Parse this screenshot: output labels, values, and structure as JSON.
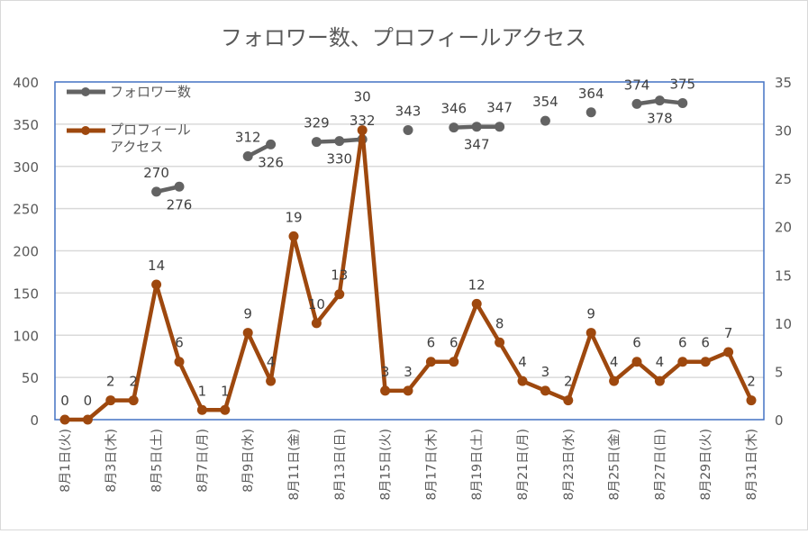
{
  "chart_data": {
    "type": "line",
    "title": "フォロワー数、プロフィールアクセス",
    "x": [
      "8月1日(火)",
      "8月2日",
      "8月3日(木)",
      "8月4日",
      "8月5日(土)",
      "8月6日",
      "8月7日(月)",
      "8月8日",
      "8月9日(水)",
      "8月10日",
      "8月11日(金)",
      "8月12日",
      "8月13日(日)",
      "8月14日",
      "8月15日(火)",
      "8月16日",
      "8月17日(木)",
      "8月18日",
      "8月19日(土)",
      "8月20日",
      "8月21日(月)",
      "8月22日",
      "8月23日(水)",
      "8月24日",
      "8月25日(金)",
      "8月26日",
      "8月27日(日)",
      "8月28日",
      "8月29日(火)",
      "8月30日",
      "8月31日(木)"
    ],
    "x_tick_labels": [
      "8月1日(火)",
      "8月3日(木)",
      "8月5日(土)",
      "8月7日(月)",
      "8月9日(水)",
      "8月11日(金)",
      "8月13日(日)",
      "8月15日(火)",
      "8月17日(木)",
      "8月19日(土)",
      "8月21日(月)",
      "8月23日(水)",
      "8月25日(金)",
      "8月27日(日)",
      "8月29日(火)",
      "8月31日(木)"
    ],
    "y_left": {
      "range": [
        0,
        400
      ],
      "ticks": [
        0,
        50,
        100,
        150,
        200,
        250,
        300,
        350,
        400
      ]
    },
    "y_right": {
      "range": [
        0,
        35
      ],
      "ticks": [
        0,
        5,
        10,
        15,
        20,
        25,
        30,
        35
      ]
    },
    "grid": true,
    "legend": "top-left",
    "series": [
      {
        "name": "フォロワー数",
        "axis": "left",
        "color": "#636363",
        "values": [
          null,
          null,
          null,
          null,
          270,
          276,
          null,
          null,
          312,
          326,
          null,
          329,
          330,
          332,
          null,
          343,
          null,
          346,
          347,
          347,
          null,
          354,
          null,
          364,
          null,
          374,
          378,
          375,
          null,
          null,
          null
        ]
      },
      {
        "name": "プロフィールアクセス",
        "axis": "right",
        "color": "#9E480E",
        "values": [
          0,
          0,
          2,
          2,
          14,
          6,
          1,
          1,
          9,
          4,
          19,
          10,
          13,
          30,
          3,
          3,
          6,
          6,
          12,
          8,
          4,
          3,
          2,
          9,
          4,
          6,
          4,
          6,
          6,
          7,
          2
        ]
      }
    ]
  }
}
